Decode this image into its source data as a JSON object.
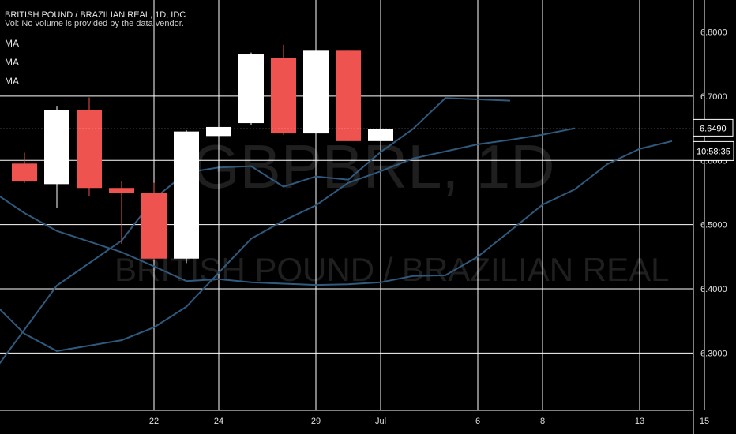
{
  "header": {
    "symbol_line": "BRITISH POUND / BRAZILIAN REAL, 1D, IDC",
    "volume_note": "Vol: No volume is provided by the data vendor.",
    "indicators": [
      "MA",
      "MA",
      "MA"
    ]
  },
  "watermark": {
    "ticker": "GBPBRL, 1D",
    "description": "BRITISH POUND / BRAZILIAN REAL"
  },
  "last_price_label": "6.6490",
  "countdown_label": "10:58:35",
  "colors": {
    "background": "#000000",
    "up_candle": "#ffffff",
    "down_candle": "#ef5350",
    "ma_line": "#2f5a7e",
    "grid": "#ffffff"
  },
  "chart_data": {
    "type": "candlestick",
    "title": "",
    "ylim": [
      6.25,
      6.84
    ],
    "y_ticks": [
      "6.3000",
      "6.4000",
      "6.5000",
      "6.6000",
      "6.7000",
      "6.8000"
    ],
    "x_ticks": [
      "22",
      "24",
      "29",
      "Jul",
      "6",
      "8",
      "13",
      "15"
    ],
    "grid": true,
    "candles": [
      {
        "date": "2020-06-16",
        "open": 6.595,
        "high": 6.612,
        "low": 6.565,
        "close": 6.567
      },
      {
        "date": "2020-06-17",
        "open": 6.563,
        "high": 6.685,
        "low": 6.526,
        "close": 6.678
      },
      {
        "date": "2020-06-18",
        "open": 6.678,
        "high": 6.698,
        "low": 6.545,
        "close": 6.557
      },
      {
        "date": "2020-06-19",
        "open": 6.557,
        "high": 6.568,
        "low": 6.47,
        "close": 6.549
      },
      {
        "date": "2020-06-22",
        "open": 6.549,
        "high": 6.565,
        "low": 6.445,
        "close": 6.447
      },
      {
        "date": "2020-06-23",
        "open": 6.447,
        "high": 6.647,
        "low": 6.44,
        "close": 6.645
      },
      {
        "date": "2020-06-24",
        "open": 6.638,
        "high": 6.652,
        "low": 6.55,
        "close": 6.652
      },
      {
        "date": "2020-06-25",
        "open": 6.658,
        "high": 6.768,
        "low": 6.655,
        "close": 6.765
      },
      {
        "date": "2020-06-26",
        "open": 6.76,
        "high": 6.78,
        "low": 6.64,
        "close": 6.642
      },
      {
        "date": "2020-06-29",
        "open": 6.642,
        "high": 6.792,
        "low": 6.62,
        "close": 6.772
      },
      {
        "date": "2020-06-30",
        "open": 6.772,
        "high": 6.772,
        "low": 6.63,
        "close": 6.63
      },
      {
        "date": "2020-07-01",
        "open": 6.63,
        "high": 6.649,
        "low": 6.63,
        "close": 6.649
      }
    ],
    "series": [
      {
        "values": [
          {
            "date": "2020-06-15",
            "y": 6.268
          },
          {
            "date": "2020-06-17",
            "y": 6.405
          },
          {
            "date": "2020-06-19",
            "y": 6.475
          },
          {
            "date": "2020-06-22",
            "y": 6.54
          },
          {
            "date": "2020-06-23",
            "y": 6.581
          },
          {
            "date": "2020-06-24",
            "y": 6.589
          },
          {
            "date": "2020-06-25",
            "y": 6.591
          },
          {
            "date": "2020-06-26",
            "y": 6.559
          },
          {
            "date": "2020-06-29",
            "y": 6.575
          },
          {
            "date": "2020-06-30",
            "y": 6.57
          },
          {
            "date": "2020-07-01",
            "y": 6.613
          },
          {
            "date": "2020-07-02",
            "y": 6.649
          },
          {
            "date": "2020-07-03",
            "y": 6.697
          },
          {
            "date": "2020-07-07",
            "y": 6.693
          }
        ]
      },
      {
        "values": [
          {
            "date": "2020-06-15",
            "y": 6.38
          },
          {
            "date": "2020-06-16",
            "y": 6.33
          },
          {
            "date": "2020-06-17",
            "y": 6.303
          },
          {
            "date": "2020-06-19",
            "y": 6.32
          },
          {
            "date": "2020-06-22",
            "y": 6.34
          },
          {
            "date": "2020-06-23",
            "y": 6.372
          },
          {
            "date": "2020-06-24",
            "y": 6.425
          },
          {
            "date": "2020-06-25",
            "y": 6.478
          },
          {
            "date": "2020-06-26",
            "y": 6.506
          },
          {
            "date": "2020-06-29",
            "y": 6.53
          },
          {
            "date": "2020-06-30",
            "y": 6.565
          },
          {
            "date": "2020-07-01",
            "y": 6.583
          },
          {
            "date": "2020-07-02",
            "y": 6.603
          },
          {
            "date": "2020-07-03",
            "y": 6.614
          },
          {
            "date": "2020-07-06",
            "y": 6.625
          },
          {
            "date": "2020-07-07",
            "y": 6.632
          },
          {
            "date": "2020-07-08",
            "y": 6.64
          },
          {
            "date": "2020-07-09",
            "y": 6.65
          }
        ]
      },
      {
        "values": [
          {
            "date": "2020-06-15",
            "y": 6.552
          },
          {
            "date": "2020-06-16",
            "y": 6.518
          },
          {
            "date": "2020-06-17",
            "y": 6.49
          },
          {
            "date": "2020-06-19",
            "y": 6.457
          },
          {
            "date": "2020-06-22",
            "y": 6.435
          },
          {
            "date": "2020-06-23",
            "y": 6.412
          },
          {
            "date": "2020-06-24",
            "y": 6.415
          },
          {
            "date": "2020-06-25",
            "y": 6.41
          },
          {
            "date": "2020-06-26",
            "y": 6.408
          },
          {
            "date": "2020-06-29",
            "y": 6.406
          },
          {
            "date": "2020-06-30",
            "y": 6.407
          },
          {
            "date": "2020-07-01",
            "y": 6.41
          },
          {
            "date": "2020-07-02",
            "y": 6.42
          },
          {
            "date": "2020-07-03",
            "y": 6.421
          },
          {
            "date": "2020-07-06",
            "y": 6.45
          },
          {
            "date": "2020-07-07",
            "y": 6.49
          },
          {
            "date": "2020-07-08",
            "y": 6.531
          },
          {
            "date": "2020-07-09",
            "y": 6.555
          },
          {
            "date": "2020-07-10",
            "y": 6.594
          },
          {
            "date": "2020-07-13",
            "y": 6.618
          },
          {
            "date": "2020-07-14",
            "y": 6.63
          }
        ]
      }
    ]
  }
}
